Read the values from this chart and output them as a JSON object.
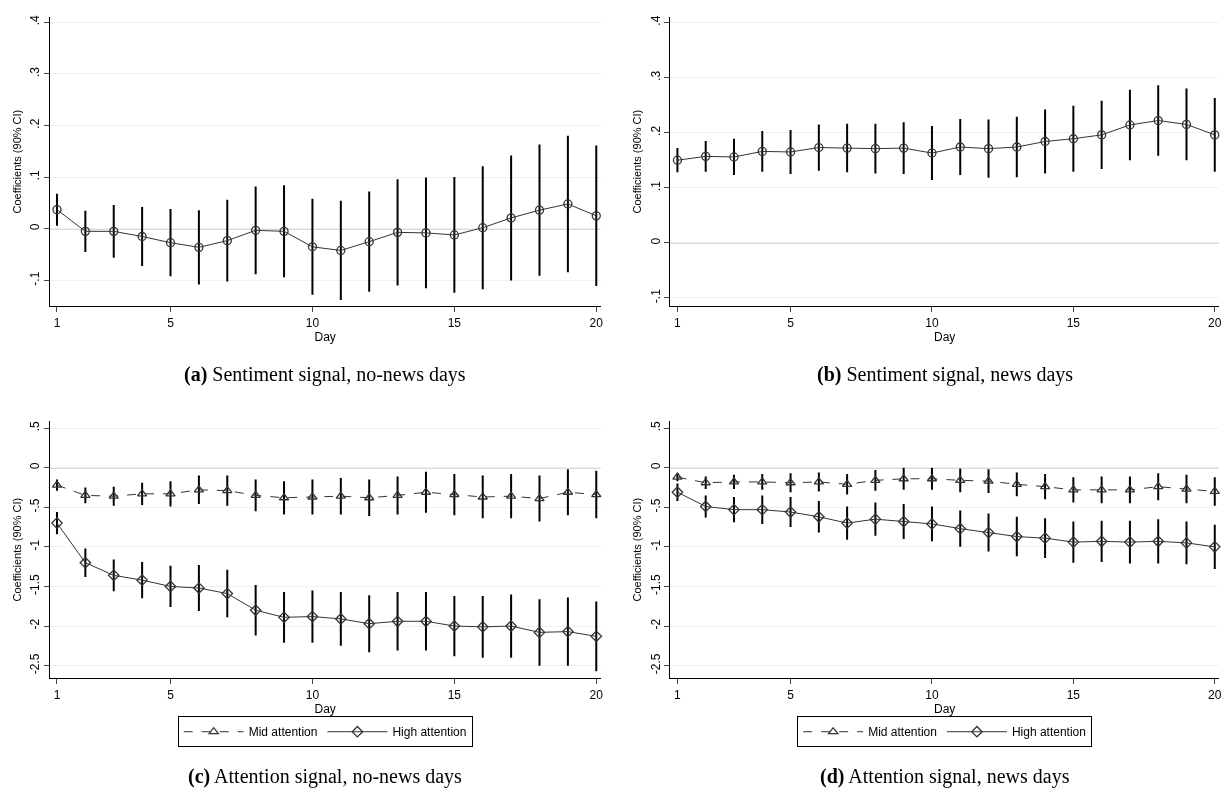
{
  "chart_data": [
    {
      "type": "line",
      "title": "(a) Sentiment signal, no-news days",
      "xlabel": "Day",
      "ylabel": "Coefficients (90% CI)",
      "x": [
        1,
        2,
        3,
        4,
        5,
        6,
        7,
        8,
        9,
        10,
        11,
        12,
        13,
        14,
        15,
        16,
        17,
        18,
        19,
        20
      ],
      "series": [
        {
          "color": "#333333",
          "marker": "circle",
          "line_style": "solid",
          "values": [
            0.037,
            -0.005,
            -0.005,
            -0.015,
            -0.027,
            -0.036,
            -0.023,
            -0.003,
            -0.005,
            -0.035,
            -0.042,
            -0.025,
            -0.007,
            -0.008,
            -0.012,
            0.002,
            0.021,
            0.036,
            0.048,
            0.025
          ],
          "errors": [
            0.031,
            0.04,
            0.051,
            0.057,
            0.065,
            0.072,
            0.079,
            0.085,
            0.089,
            0.093,
            0.096,
            0.097,
            0.103,
            0.107,
            0.112,
            0.119,
            0.121,
            0.127,
            0.132,
            0.136
          ]
        }
      ],
      "xlim": [
        0.75,
        20.15
      ],
      "xticks": [
        1,
        5,
        10,
        15,
        20
      ],
      "ylim": [
        -0.15,
        0.41
      ],
      "yticks": [
        {
          "value": -0.1,
          "label": "-.1"
        },
        0,
        {
          "value": 0.1,
          "label": ".1"
        },
        {
          "value": 0.2,
          "label": ".2"
        },
        {
          "value": 0.3,
          "label": ".3"
        },
        {
          "value": 0.4,
          "label": ".4"
        }
      ],
      "ref_lines": [
        {
          "axis": "y",
          "value": 0,
          "color": "#b4b4b4"
        }
      ],
      "grid": "y",
      "legend": false
    },
    {
      "type": "line",
      "title": "(b) Sentiment signal, news days",
      "xlabel": "Day",
      "ylabel": "Coefficients (90% CI)",
      "x": [
        1,
        2,
        3,
        4,
        5,
        6,
        7,
        8,
        9,
        10,
        11,
        12,
        13,
        14,
        15,
        16,
        17,
        18,
        19,
        20
      ],
      "series": [
        {
          "color": "#333333",
          "marker": "circle",
          "line_style": "solid",
          "values": [
            0.15,
            0.157,
            0.156,
            0.166,
            0.165,
            0.173,
            0.172,
            0.171,
            0.172,
            0.163,
            0.174,
            0.171,
            0.174,
            0.184,
            0.189,
            0.196,
            0.214,
            0.222,
            0.215,
            0.196
          ],
          "errors": [
            0.022,
            0.028,
            0.033,
            0.037,
            0.04,
            0.042,
            0.044,
            0.045,
            0.047,
            0.049,
            0.051,
            0.053,
            0.055,
            0.058,
            0.06,
            0.062,
            0.064,
            0.064,
            0.065,
            0.067
          ]
        }
      ],
      "xlim": [
        0.75,
        20.15
      ],
      "xticks": [
        1,
        5,
        10,
        15,
        20
      ],
      "ylim": [
        -0.115,
        0.41
      ],
      "yticks": [
        {
          "value": -0.1,
          "label": "-.1"
        },
        0,
        {
          "value": 0.1,
          "label": ".1"
        },
        {
          "value": 0.2,
          "label": ".2"
        },
        {
          "value": 0.3,
          "label": ".3"
        },
        {
          "value": 0.4,
          "label": ".4"
        }
      ],
      "ref_lines": [
        {
          "axis": "y",
          "value": 0,
          "color": "#b4b4b4"
        }
      ],
      "grid": "y",
      "legend": false
    },
    {
      "type": "line",
      "title": "(c) Attention signal, no-news days",
      "xlabel": "Day",
      "ylabel": "Coefficients (90% CI)",
      "x": [
        1,
        2,
        3,
        4,
        5,
        6,
        7,
        8,
        9,
        10,
        11,
        12,
        13,
        14,
        15,
        16,
        17,
        18,
        19,
        20
      ],
      "series": [
        {
          "name": "Mid attention",
          "color": "#333333",
          "marker": "triangle",
          "line_style": "dashed",
          "values": [
            -0.22,
            -0.35,
            -0.36,
            -0.33,
            -0.33,
            -0.28,
            -0.29,
            -0.35,
            -0.38,
            -0.37,
            -0.36,
            -0.38,
            -0.35,
            -0.31,
            -0.34,
            -0.37,
            -0.36,
            -0.39,
            -0.31,
            -0.34
          ],
          "errors": [
            0.07,
            0.1,
            0.12,
            0.14,
            0.16,
            0.18,
            0.19,
            0.2,
            0.21,
            0.22,
            0.23,
            0.23,
            0.24,
            0.26,
            0.26,
            0.27,
            0.28,
            0.29,
            0.29,
            0.3
          ]
        },
        {
          "name": "High attention",
          "color": "#333333",
          "marker": "diamond",
          "line_style": "solid",
          "values": [
            -0.7,
            -1.2,
            -1.36,
            -1.42,
            -1.5,
            -1.52,
            -1.59,
            -1.8,
            -1.89,
            -1.88,
            -1.91,
            -1.97,
            -1.94,
            -1.94,
            -2.0,
            -2.01,
            -2.0,
            -2.08,
            -2.07,
            -2.13
          ],
          "errors": [
            0.14,
            0.18,
            0.2,
            0.23,
            0.26,
            0.29,
            0.3,
            0.32,
            0.32,
            0.33,
            0.34,
            0.36,
            0.37,
            0.37,
            0.38,
            0.39,
            0.4,
            0.42,
            0.43,
            0.44
          ]
        }
      ],
      "xlim": [
        0.75,
        20.15
      ],
      "xticks": [
        1,
        5,
        10,
        15,
        20
      ],
      "ylim": [
        -2.66,
        0.59
      ],
      "yticks": [
        {
          "value": -2.5,
          "label": "-2.5"
        },
        -2,
        {
          "value": -1.5,
          "label": "-1.5"
        },
        -1,
        {
          "value": -0.5,
          "label": "-.5"
        },
        0,
        {
          "value": 0.5,
          "label": ".5"
        }
      ],
      "ref_lines": [
        {
          "axis": "y",
          "value": 0,
          "color": "#b4b4b4"
        }
      ],
      "grid": "y",
      "legend": "bottom"
    },
    {
      "type": "line",
      "title": "(d) Attention signal, news days",
      "xlabel": "Day",
      "ylabel": "Coefficients (90% CI)",
      "x": [
        1,
        2,
        3,
        4,
        5,
        6,
        7,
        8,
        9,
        10,
        11,
        12,
        13,
        14,
        15,
        16,
        17,
        18,
        19,
        20
      ],
      "series": [
        {
          "name": "Mid attention",
          "color": "#333333",
          "marker": "triangle",
          "line_style": "dashed",
          "values": [
            -0.12,
            -0.19,
            -0.18,
            -0.18,
            -0.19,
            -0.18,
            -0.21,
            -0.16,
            -0.14,
            -0.14,
            -0.16,
            -0.17,
            -0.21,
            -0.24,
            -0.28,
            -0.28,
            -0.28,
            -0.24,
            -0.27,
            -0.3
          ],
          "errors": [
            0.05,
            0.08,
            0.09,
            0.1,
            0.12,
            0.12,
            0.13,
            0.13,
            0.14,
            0.14,
            0.15,
            0.15,
            0.15,
            0.16,
            0.16,
            0.17,
            0.17,
            0.17,
            0.18,
            0.18
          ]
        },
        {
          "name": "High attention",
          "color": "#333333",
          "marker": "diamond",
          "line_style": "solid",
          "values": [
            -0.31,
            -0.49,
            -0.53,
            -0.53,
            -0.56,
            -0.62,
            -0.7,
            -0.65,
            -0.68,
            -0.71,
            -0.77,
            -0.82,
            -0.87,
            -0.89,
            -0.94,
            -0.93,
            -0.94,
            -0.93,
            -0.95,
            -1.0
          ],
          "errors": [
            0.11,
            0.14,
            0.16,
            0.18,
            0.19,
            0.2,
            0.21,
            0.21,
            0.22,
            0.22,
            0.23,
            0.24,
            0.25,
            0.25,
            0.26,
            0.26,
            0.27,
            0.28,
            0.27,
            0.28
          ]
        }
      ],
      "xlim": [
        0.75,
        20.15
      ],
      "xticks": [
        1,
        5,
        10,
        15,
        20
      ],
      "ylim": [
        -2.66,
        0.59
      ],
      "yticks": [
        {
          "value": -2.5,
          "label": "-2.5"
        },
        -2,
        {
          "value": -1.5,
          "label": "-1.5"
        },
        -1,
        {
          "value": -0.5,
          "label": "-.5"
        },
        0,
        {
          "value": 0.5,
          "label": ".5"
        }
      ],
      "ref_lines": [
        {
          "axis": "y",
          "value": 0,
          "color": "#b4b4b4"
        }
      ],
      "grid": "y",
      "legend": "bottom"
    }
  ]
}
